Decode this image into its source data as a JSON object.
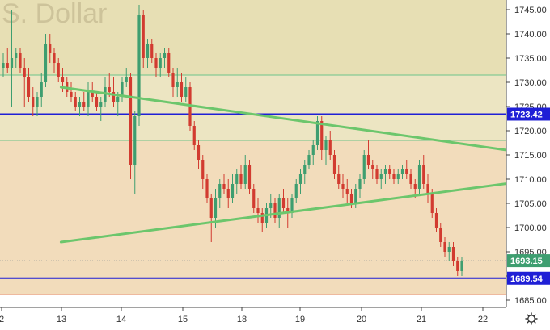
{
  "chart_data": {
    "type": "candlestick",
    "watermark": "S. Dollar",
    "x_tick_labels": [
      "2",
      "13",
      "14",
      "15",
      "18",
      "19",
      "20",
      "21",
      "22"
    ],
    "y_ticks": [
      1685,
      1690,
      1695,
      1700,
      1705,
      1710,
      1715,
      1720,
      1725,
      1730,
      1735,
      1740,
      1745
    ],
    "y_tick_labels": [
      "1685.00",
      "1690.00",
      "1695.00",
      "1700.00",
      "1705.00",
      "1710.00",
      "1715.00",
      "1720.00",
      "1725.00",
      "1730.00",
      "1735.00",
      "1740.00",
      "1745.00"
    ],
    "ylim": [
      1683.5,
      1747
    ],
    "zones": [
      {
        "name": "upper-zone",
        "from": 1731.5,
        "to": 1747,
        "color": "#e7dfb4"
      },
      {
        "name": "middle-zone",
        "from": 1718,
        "to": 1731.5,
        "color": "#ece5c2"
      },
      {
        "name": "lower-zone",
        "from": 1686,
        "to": 1718,
        "color": "#f2dcbb"
      }
    ],
    "horizontal_lines": [
      {
        "value": 1723.42,
        "label": "1723.42",
        "color": "#1f1fd6",
        "style": "thick"
      },
      {
        "value": 1689.54,
        "label": "1689.54",
        "color": "#1f1fd6",
        "style": "thick"
      },
      {
        "value": 1731.5,
        "color": "#6cc48a",
        "style": "thin"
      },
      {
        "value": 1718,
        "color": "#6cc48a",
        "style": "thin"
      },
      {
        "value": 1686.2,
        "color": "#e0504a",
        "style": "thin"
      },
      {
        "value": 1693.15,
        "color": "#9a9a9a",
        "style": "dotted"
      }
    ],
    "price_badges": [
      {
        "value": 1723.42,
        "label": "1723.42",
        "color": "#1f1fd6"
      },
      {
        "value": 1693.15,
        "label": "1693.15",
        "color": "#3e9e70"
      },
      {
        "value": 1689.54,
        "label": "1689.54",
        "color": "#1f1fd6"
      }
    ],
    "trendlines": [
      {
        "name": "upper-trendline",
        "start": [
          13.6,
          1729
        ],
        "end": [
          126.6,
          1715
        ],
        "color": "#6cc66c"
      },
      {
        "name": "lower-trendline",
        "start": [
          13.6,
          1697
        ],
        "end": [
          126.6,
          1710
        ],
        "color": "#6cc66c"
      }
    ],
    "colors": {
      "up": "#3e9e70",
      "down": "#d23b30"
    },
    "candles": [
      {
        "o": 1733,
        "h": 1736,
        "l": 1731,
        "c": 1734
      },
      {
        "o": 1734,
        "h": 1737,
        "l": 1732,
        "c": 1733
      },
      {
        "o": 1733,
        "h": 1745,
        "l": 1725,
        "c": 1735
      },
      {
        "o": 1735,
        "h": 1737,
        "l": 1733,
        "c": 1736
      },
      {
        "o": 1736,
        "h": 1737,
        "l": 1732,
        "c": 1733
      },
      {
        "o": 1733,
        "h": 1735,
        "l": 1725,
        "c": 1731
      },
      {
        "o": 1731,
        "h": 1733,
        "l": 1726,
        "c": 1727
      },
      {
        "o": 1727,
        "h": 1729,
        "l": 1723,
        "c": 1725
      },
      {
        "o": 1725,
        "h": 1728,
        "l": 1723,
        "c": 1727
      },
      {
        "o": 1727,
        "h": 1732,
        "l": 1725,
        "c": 1730
      },
      {
        "o": 1730,
        "h": 1740,
        "l": 1729,
        "c": 1738
      },
      {
        "o": 1738,
        "h": 1740,
        "l": 1734,
        "c": 1736
      },
      {
        "o": 1736,
        "h": 1737,
        "l": 1732,
        "c": 1734
      },
      {
        "o": 1734,
        "h": 1735,
        "l": 1730,
        "c": 1731
      },
      {
        "o": 1731,
        "h": 1733,
        "l": 1728,
        "c": 1730
      },
      {
        "o": 1730,
        "h": 1731,
        "l": 1727,
        "c": 1728
      },
      {
        "o": 1728,
        "h": 1730,
        "l": 1726,
        "c": 1727
      },
      {
        "o": 1727,
        "h": 1728,
        "l": 1724,
        "c": 1725
      },
      {
        "o": 1725,
        "h": 1727,
        "l": 1723,
        "c": 1726
      },
      {
        "o": 1726,
        "h": 1728,
        "l": 1724,
        "c": 1725
      },
      {
        "o": 1725,
        "h": 1730,
        "l": 1723,
        "c": 1728
      },
      {
        "o": 1728,
        "h": 1730,
        "l": 1726,
        "c": 1727
      },
      {
        "o": 1727,
        "h": 1728,
        "l": 1724,
        "c": 1725
      },
      {
        "o": 1725,
        "h": 1727,
        "l": 1722,
        "c": 1726
      },
      {
        "o": 1726,
        "h": 1731,
        "l": 1725,
        "c": 1729
      },
      {
        "o": 1729,
        "h": 1732,
        "l": 1727,
        "c": 1728
      },
      {
        "o": 1728,
        "h": 1731,
        "l": 1725,
        "c": 1726
      },
      {
        "o": 1726,
        "h": 1728,
        "l": 1723,
        "c": 1727
      },
      {
        "o": 1727,
        "h": 1731,
        "l": 1726,
        "c": 1730
      },
      {
        "o": 1730,
        "h": 1733,
        "l": 1729,
        "c": 1731
      },
      {
        "o": 1731,
        "h": 1732,
        "l": 1710,
        "c": 1713
      },
      {
        "o": 1713,
        "h": 1724,
        "l": 1707,
        "c": 1723
      },
      {
        "o": 1723,
        "h": 1746,
        "l": 1721,
        "c": 1744
      },
      {
        "o": 1744,
        "h": 1745,
        "l": 1733,
        "c": 1735
      },
      {
        "o": 1735,
        "h": 1739,
        "l": 1733,
        "c": 1738
      },
      {
        "o": 1738,
        "h": 1739,
        "l": 1734,
        "c": 1735
      },
      {
        "o": 1735,
        "h": 1736,
        "l": 1731,
        "c": 1733
      },
      {
        "o": 1733,
        "h": 1736,
        "l": 1731,
        "c": 1735
      },
      {
        "o": 1735,
        "h": 1737,
        "l": 1733,
        "c": 1736
      },
      {
        "o": 1736,
        "h": 1737,
        "l": 1731,
        "c": 1732
      },
      {
        "o": 1732,
        "h": 1733,
        "l": 1727,
        "c": 1729
      },
      {
        "o": 1729,
        "h": 1733,
        "l": 1727,
        "c": 1730
      },
      {
        "o": 1730,
        "h": 1732,
        "l": 1726,
        "c": 1727
      },
      {
        "o": 1727,
        "h": 1731,
        "l": 1726,
        "c": 1729
      },
      {
        "o": 1729,
        "h": 1730,
        "l": 1720,
        "c": 1721
      },
      {
        "o": 1721,
        "h": 1722,
        "l": 1716,
        "c": 1717
      },
      {
        "o": 1717,
        "h": 1718,
        "l": 1712,
        "c": 1714
      },
      {
        "o": 1714,
        "h": 1715,
        "l": 1708,
        "c": 1710
      },
      {
        "o": 1710,
        "h": 1711,
        "l": 1705,
        "c": 1706
      },
      {
        "o": 1706,
        "h": 1707,
        "l": 1697,
        "c": 1702
      },
      {
        "o": 1702,
        "h": 1708,
        "l": 1700,
        "c": 1706
      },
      {
        "o": 1706,
        "h": 1710,
        "l": 1704,
        "c": 1709
      },
      {
        "o": 1709,
        "h": 1711,
        "l": 1707,
        "c": 1708
      },
      {
        "o": 1708,
        "h": 1710,
        "l": 1704,
        "c": 1706
      },
      {
        "o": 1706,
        "h": 1711,
        "l": 1705,
        "c": 1709
      },
      {
        "o": 1709,
        "h": 1712,
        "l": 1707,
        "c": 1711
      },
      {
        "o": 1711,
        "h": 1713,
        "l": 1708,
        "c": 1709
      },
      {
        "o": 1709,
        "h": 1715,
        "l": 1708,
        "c": 1713
      },
      {
        "o": 1713,
        "h": 1714,
        "l": 1707,
        "c": 1708
      },
      {
        "o": 1708,
        "h": 1709,
        "l": 1703,
        "c": 1704
      },
      {
        "o": 1704,
        "h": 1706,
        "l": 1701,
        "c": 1703
      },
      {
        "o": 1703,
        "h": 1704,
        "l": 1699,
        "c": 1701
      },
      {
        "o": 1701,
        "h": 1705,
        "l": 1700,
        "c": 1704
      },
      {
        "o": 1704,
        "h": 1707,
        "l": 1702,
        "c": 1705
      },
      {
        "o": 1705,
        "h": 1706,
        "l": 1701,
        "c": 1702
      },
      {
        "o": 1702,
        "h": 1707,
        "l": 1700,
        "c": 1706
      },
      {
        "o": 1706,
        "h": 1708,
        "l": 1703,
        "c": 1704
      },
      {
        "o": 1704,
        "h": 1706,
        "l": 1700,
        "c": 1703
      },
      {
        "o": 1703,
        "h": 1707,
        "l": 1702,
        "c": 1706
      },
      {
        "o": 1706,
        "h": 1710,
        "l": 1705,
        "c": 1709
      },
      {
        "o": 1709,
        "h": 1712,
        "l": 1707,
        "c": 1711
      },
      {
        "o": 1711,
        "h": 1714,
        "l": 1709,
        "c": 1713
      },
      {
        "o": 1713,
        "h": 1716,
        "l": 1712,
        "c": 1715
      },
      {
        "o": 1715,
        "h": 1718,
        "l": 1713,
        "c": 1717
      },
      {
        "o": 1717,
        "h": 1723,
        "l": 1716,
        "c": 1722
      },
      {
        "o": 1722,
        "h": 1723,
        "l": 1714,
        "c": 1716
      },
      {
        "o": 1716,
        "h": 1719,
        "l": 1713,
        "c": 1718
      },
      {
        "o": 1718,
        "h": 1720,
        "l": 1714,
        "c": 1715
      },
      {
        "o": 1715,
        "h": 1716,
        "l": 1710,
        "c": 1711
      },
      {
        "o": 1711,
        "h": 1713,
        "l": 1708,
        "c": 1709
      },
      {
        "o": 1709,
        "h": 1711,
        "l": 1706,
        "c": 1708
      },
      {
        "o": 1708,
        "h": 1710,
        "l": 1705,
        "c": 1707
      },
      {
        "o": 1707,
        "h": 1708,
        "l": 1704,
        "c": 1705
      },
      {
        "o": 1705,
        "h": 1709,
        "l": 1704,
        "c": 1708
      },
      {
        "o": 1708,
        "h": 1711,
        "l": 1706,
        "c": 1710
      },
      {
        "o": 1710,
        "h": 1716,
        "l": 1709,
        "c": 1715
      },
      {
        "o": 1715,
        "h": 1718,
        "l": 1712,
        "c": 1713
      },
      {
        "o": 1713,
        "h": 1714,
        "l": 1710,
        "c": 1712
      },
      {
        "o": 1712,
        "h": 1713,
        "l": 1709,
        "c": 1710
      },
      {
        "o": 1710,
        "h": 1712,
        "l": 1708,
        "c": 1711
      },
      {
        "o": 1711,
        "h": 1713,
        "l": 1709,
        "c": 1712
      },
      {
        "o": 1712,
        "h": 1713,
        "l": 1710,
        "c": 1711
      },
      {
        "o": 1711,
        "h": 1712,
        "l": 1709,
        "c": 1710
      },
      {
        "o": 1710,
        "h": 1712,
        "l": 1709,
        "c": 1711
      },
      {
        "o": 1711,
        "h": 1713,
        "l": 1710,
        "c": 1712
      },
      {
        "o": 1712,
        "h": 1714,
        "l": 1710,
        "c": 1711
      },
      {
        "o": 1711,
        "h": 1712,
        "l": 1708,
        "c": 1709
      },
      {
        "o": 1709,
        "h": 1710,
        "l": 1706,
        "c": 1708
      },
      {
        "o": 1708,
        "h": 1714,
        "l": 1707,
        "c": 1713
      },
      {
        "o": 1713,
        "h": 1715,
        "l": 1708,
        "c": 1709
      },
      {
        "o": 1709,
        "h": 1711,
        "l": 1705,
        "c": 1707
      },
      {
        "o": 1707,
        "h": 1708,
        "l": 1702,
        "c": 1703
      },
      {
        "o": 1703,
        "h": 1704,
        "l": 1699,
        "c": 1700
      },
      {
        "o": 1700,
        "h": 1701,
        "l": 1696,
        "c": 1697
      },
      {
        "o": 1697,
        "h": 1698,
        "l": 1694,
        "c": 1695
      },
      {
        "o": 1695,
        "h": 1697,
        "l": 1693,
        "c": 1696
      },
      {
        "o": 1696,
        "h": 1697,
        "l": 1692,
        "c": 1693
      },
      {
        "o": 1693,
        "h": 1694,
        "l": 1690,
        "c": 1691
      },
      {
        "o": 1691,
        "h": 1694,
        "l": 1690,
        "c": 1693.15
      }
    ]
  }
}
